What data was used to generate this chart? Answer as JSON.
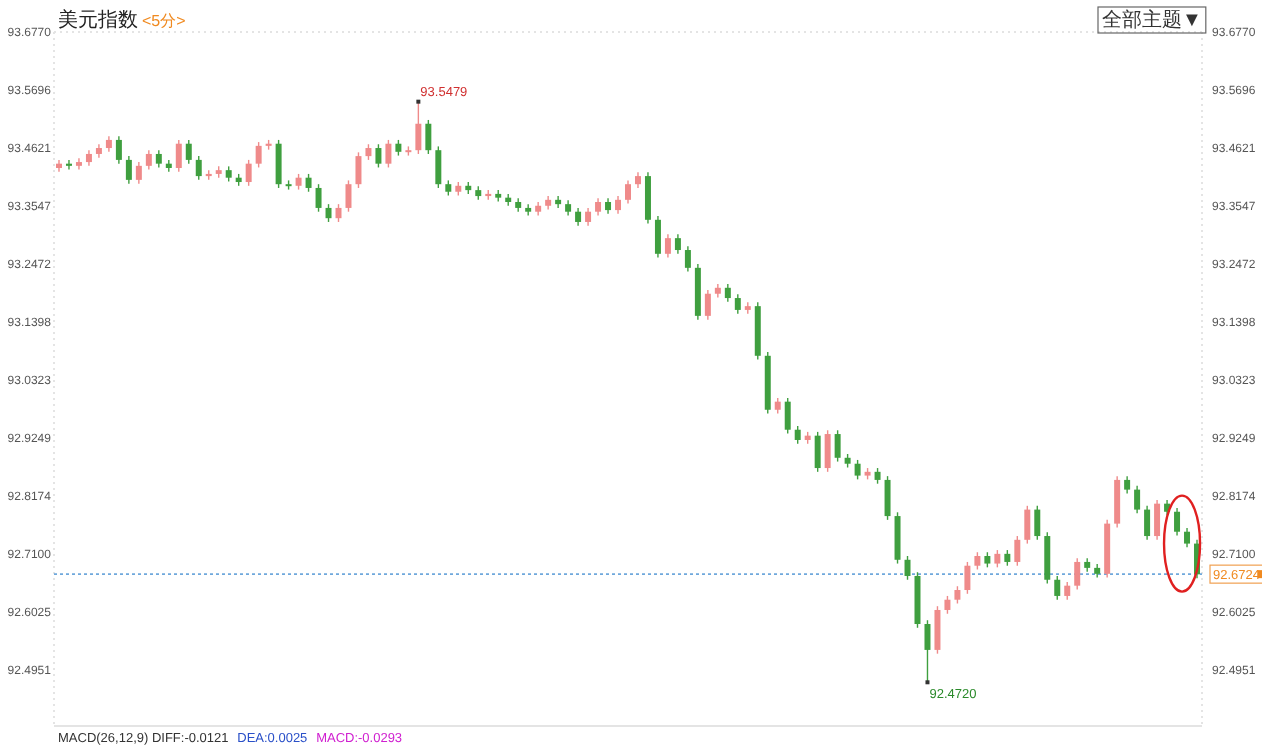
{
  "chart_data": {
    "type": "candlestick",
    "title": "美元指数",
    "subtitle": "<5分>",
    "categories": [
      null,
      null,
      null,
      null,
      null,
      null,
      null,
      null,
      null,
      null,
      null,
      null,
      null,
      null,
      null,
      null,
      null,
      null,
      null,
      null,
      null,
      null,
      null,
      null,
      null,
      null,
      null,
      null,
      null,
      null,
      null,
      null,
      null,
      null,
      null,
      null,
      null,
      null,
      null,
      null,
      null,
      null,
      null,
      null,
      null,
      null,
      null,
      null,
      null,
      null,
      null,
      null,
      null,
      null,
      null,
      null,
      null,
      null,
      null,
      null,
      null,
      null,
      null,
      null,
      null,
      null,
      null,
      null,
      null,
      null,
      null,
      null,
      null,
      null,
      null,
      null,
      null,
      null,
      null,
      null,
      null,
      null,
      null,
      null,
      null,
      null,
      null,
      null,
      null,
      null,
      null,
      null,
      null,
      null,
      null,
      null,
      null,
      null,
      null,
      null,
      null,
      null,
      null,
      null,
      null,
      null,
      null,
      null,
      null,
      null,
      null,
      null,
      null,
      null,
      null
    ],
    "ohlc": [
      [
        93.425,
        93.44,
        93.418,
        93.433
      ],
      [
        93.433,
        93.44,
        93.422,
        93.429
      ],
      [
        93.429,
        93.443,
        93.422,
        93.436
      ],
      [
        93.436,
        93.458,
        93.429,
        93.451
      ],
      [
        93.451,
        93.469,
        93.444,
        93.462
      ],
      [
        93.462,
        93.484,
        93.455,
        93.477
      ],
      [
        93.477,
        93.484,
        93.433,
        93.44
      ],
      [
        93.44,
        93.447,
        93.396,
        93.403
      ],
      [
        93.403,
        93.436,
        93.396,
        93.429
      ],
      [
        93.429,
        93.458,
        93.422,
        93.451
      ],
      [
        93.451,
        93.458,
        93.426,
        93.433
      ],
      [
        93.433,
        93.44,
        93.418,
        93.425
      ],
      [
        93.425,
        93.477,
        93.418,
        93.47
      ],
      [
        93.47,
        93.477,
        93.433,
        93.44
      ],
      [
        93.44,
        93.447,
        93.403,
        93.41
      ],
      [
        93.41,
        93.421,
        93.403,
        93.414
      ],
      [
        93.414,
        93.428,
        93.407,
        93.421
      ],
      [
        93.421,
        93.428,
        93.4,
        93.407
      ],
      [
        93.407,
        93.414,
        93.392,
        93.399
      ],
      [
        93.399,
        93.44,
        93.392,
        93.433
      ],
      [
        93.433,
        93.473,
        93.426,
        93.466
      ],
      [
        93.466,
        93.477,
        93.459,
        93.47
      ],
      [
        93.47,
        93.477,
        93.388,
        93.395
      ],
      [
        93.395,
        93.402,
        93.385,
        93.392
      ],
      [
        93.392,
        93.414,
        93.385,
        93.407
      ],
      [
        93.407,
        93.414,
        93.381,
        93.388
      ],
      [
        93.388,
        93.395,
        93.344,
        93.351
      ],
      [
        93.351,
        93.358,
        93.325,
        93.332
      ],
      [
        93.332,
        93.358,
        93.325,
        93.351
      ],
      [
        93.351,
        93.402,
        93.344,
        93.395
      ],
      [
        93.395,
        93.454,
        93.388,
        93.447
      ],
      [
        93.447,
        93.469,
        93.44,
        93.462
      ],
      [
        93.462,
        93.469,
        93.426,
        93.433
      ],
      [
        93.433,
        93.477,
        93.426,
        93.47
      ],
      [
        93.47,
        93.477,
        93.448,
        93.455
      ],
      [
        93.455,
        93.465,
        93.448,
        93.458
      ],
      [
        93.458,
        93.5479,
        93.451,
        93.507
      ],
      [
        93.507,
        93.514,
        93.451,
        93.458
      ],
      [
        93.458,
        93.465,
        93.388,
        93.395
      ],
      [
        93.395,
        93.402,
        93.374,
        93.381
      ],
      [
        93.381,
        93.399,
        93.374,
        93.392
      ],
      [
        93.392,
        93.399,
        93.377,
        93.384
      ],
      [
        93.384,
        93.391,
        93.366,
        93.373
      ],
      [
        93.373,
        93.384,
        93.366,
        93.377
      ],
      [
        93.377,
        93.384,
        93.363,
        93.37
      ],
      [
        93.37,
        93.377,
        93.355,
        93.362
      ],
      [
        93.362,
        93.369,
        93.344,
        93.351
      ],
      [
        93.351,
        93.358,
        93.337,
        93.344
      ],
      [
        93.344,
        93.362,
        93.337,
        93.355
      ],
      [
        93.355,
        93.373,
        93.348,
        93.366
      ],
      [
        93.366,
        93.373,
        93.351,
        93.358
      ],
      [
        93.358,
        93.365,
        93.337,
        93.344
      ],
      [
        93.344,
        93.351,
        93.318,
        93.325
      ],
      [
        93.325,
        93.351,
        93.318,
        93.344
      ],
      [
        93.344,
        93.369,
        93.337,
        93.362
      ],
      [
        93.362,
        93.369,
        93.34,
        93.347
      ],
      [
        93.347,
        93.373,
        93.34,
        93.366
      ],
      [
        93.366,
        93.402,
        93.359,
        93.395
      ],
      [
        93.395,
        93.417,
        93.388,
        93.41
      ],
      [
        93.41,
        93.417,
        93.322,
        93.329
      ],
      [
        93.329,
        93.336,
        93.259,
        93.266
      ],
      [
        93.266,
        93.302,
        93.259,
        93.295
      ],
      [
        93.295,
        93.302,
        93.266,
        93.273
      ],
      [
        93.273,
        93.28,
        93.233,
        93.24
      ],
      [
        93.24,
        93.247,
        93.144,
        93.151
      ],
      [
        93.151,
        93.199,
        93.144,
        93.192
      ],
      [
        93.192,
        93.21,
        93.185,
        93.203
      ],
      [
        93.203,
        93.21,
        93.177,
        93.184
      ],
      [
        93.184,
        93.191,
        93.155,
        93.162
      ],
      [
        93.162,
        93.176,
        93.155,
        93.169
      ],
      [
        93.169,
        93.176,
        93.07,
        93.077
      ],
      [
        93.077,
        93.084,
        92.97,
        92.977
      ],
      [
        92.977,
        92.999,
        92.97,
        92.992
      ],
      [
        92.992,
        92.999,
        92.933,
        92.94
      ],
      [
        92.94,
        92.947,
        92.914,
        92.921
      ],
      [
        92.921,
        92.936,
        92.914,
        92.929
      ],
      [
        92.929,
        92.936,
        92.862,
        92.869
      ],
      [
        92.869,
        92.939,
        92.862,
        92.932
      ],
      [
        92.932,
        92.939,
        92.881,
        92.888
      ],
      [
        92.888,
        92.895,
        92.87,
        92.877
      ],
      [
        92.877,
        92.884,
        92.848,
        92.855
      ],
      [
        92.855,
        92.869,
        92.848,
        92.862
      ],
      [
        92.862,
        92.869,
        92.84,
        92.847
      ],
      [
        92.847,
        92.854,
        92.773,
        92.78
      ],
      [
        92.78,
        92.787,
        92.692,
        92.699
      ],
      [
        92.699,
        92.706,
        92.662,
        92.669
      ],
      [
        92.669,
        92.676,
        92.573,
        92.58
      ],
      [
        92.58,
        92.587,
        92.472,
        92.532
      ],
      [
        92.532,
        92.613,
        92.525,
        92.606
      ],
      [
        92.606,
        92.632,
        92.599,
        92.625
      ],
      [
        92.625,
        92.65,
        92.618,
        92.643
      ],
      [
        92.643,
        92.695,
        92.636,
        92.688
      ],
      [
        92.688,
        92.713,
        92.681,
        92.706
      ],
      [
        92.706,
        92.713,
        92.685,
        92.692
      ],
      [
        92.692,
        92.717,
        92.685,
        92.71
      ],
      [
        92.71,
        92.717,
        92.688,
        92.695
      ],
      [
        92.695,
        92.743,
        92.688,
        92.736
      ],
      [
        92.736,
        92.799,
        92.729,
        92.792
      ],
      [
        92.792,
        92.799,
        92.736,
        92.743
      ],
      [
        92.743,
        92.75,
        92.655,
        92.662
      ],
      [
        92.662,
        92.669,
        92.625,
        92.632
      ],
      [
        92.632,
        92.658,
        92.625,
        92.651
      ],
      [
        92.651,
        92.702,
        92.644,
        92.695
      ],
      [
        92.695,
        92.702,
        92.677,
        92.684
      ],
      [
        92.684,
        92.691,
        92.666,
        92.673
      ],
      [
        92.673,
        92.773,
        92.666,
        92.766
      ],
      [
        92.766,
        92.854,
        92.759,
        92.847
      ],
      [
        92.847,
        92.854,
        92.822,
        92.829
      ],
      [
        92.829,
        92.836,
        92.785,
        92.792
      ],
      [
        92.792,
        92.799,
        92.736,
        92.743
      ],
      [
        92.743,
        92.81,
        92.736,
        92.803
      ],
      [
        92.803,
        92.81,
        92.781,
        92.788
      ],
      [
        92.788,
        92.795,
        92.744,
        92.751
      ],
      [
        92.751,
        92.758,
        92.722,
        92.729
      ],
      [
        92.729,
        92.736,
        92.665,
        92.672
      ]
    ],
    "colors": [
      "#ef8a8a",
      "#3f9f3f",
      "#ef8a8a",
      "#ef8a8a",
      "#ef8a8a",
      "#ef8a8a",
      "#3f9f3f",
      "#3f9f3f",
      "#ef8a8a",
      "#ef8a8a",
      "#3f9f3f",
      "#3f9f3f",
      "#ef8a8a",
      "#3f9f3f",
      "#3f9f3f",
      "#ef8a8a",
      "#ef8a8a",
      "#3f9f3f",
      "#3f9f3f",
      "#ef8a8a",
      "#ef8a8a",
      "#ef8a8a",
      "#3f9f3f",
      "#3f9f3f",
      "#ef8a8a",
      "#3f9f3f",
      "#3f9f3f",
      "#3f9f3f",
      "#ef8a8a",
      "#ef8a8a",
      "#ef8a8a",
      "#ef8a8a",
      "#3f9f3f",
      "#ef8a8a",
      "#3f9f3f",
      "#ef8a8a",
      "#ef8a8a",
      "#3f9f3f",
      "#3f9f3f",
      "#3f9f3f",
      "#ef8a8a",
      "#3f9f3f",
      "#3f9f3f",
      "#ef8a8a",
      "#3f9f3f",
      "#3f9f3f",
      "#3f9f3f",
      "#3f9f3f",
      "#ef8a8a",
      "#ef8a8a",
      "#3f9f3f",
      "#3f9f3f",
      "#3f9f3f",
      "#ef8a8a",
      "#ef8a8a",
      "#3f9f3f",
      "#ef8a8a",
      "#ef8a8a",
      "#ef8a8a",
      "#3f9f3f",
      "#3f9f3f",
      "#ef8a8a",
      "#3f9f3f",
      "#3f9f3f",
      "#3f9f3f",
      "#ef8a8a",
      "#ef8a8a",
      "#3f9f3f",
      "#3f9f3f",
      "#ef8a8a",
      "#3f9f3f",
      "#3f9f3f",
      "#ef8a8a",
      "#3f9f3f",
      "#3f9f3f",
      "#ef8a8a",
      "#3f9f3f",
      "#ef8a8a",
      "#3f9f3f",
      "#3f9f3f",
      "#3f9f3f",
      "#ef8a8a",
      "#3f9f3f",
      "#3f9f3f",
      "#3f9f3f",
      "#3f9f3f",
      "#3f9f3f",
      "#3f9f3f",
      "#ef8a8a",
      "#ef8a8a",
      "#ef8a8a",
      "#ef8a8a",
      "#ef8a8a",
      "#3f9f3f",
      "#ef8a8a",
      "#3f9f3f",
      "#ef8a8a",
      "#ef8a8a",
      "#3f9f3f",
      "#3f9f3f",
      "#3f9f3f",
      "#ef8a8a",
      "#ef8a8a",
      "#3f9f3f",
      "#3f9f3f",
      "#ef8a8a",
      "#ef8a8a",
      "#3f9f3f",
      "#3f9f3f",
      "#3f9f3f",
      "#ef8a8a",
      "#3f9f3f",
      "#3f9f3f",
      "#3f9f3f",
      "#3f9f3f"
    ],
    "ylim": [
      92.391,
      93.677
    ],
    "yticks": [
      {
        "value": 93.677,
        "label": "93.6770"
      },
      93.5696,
      93.4621,
      93.3547,
      93.2472,
      93.1398,
      93.0323,
      92.9249,
      92.8174,
      {
        "value": 92.71,
        "label": "92.7100"
      },
      92.6025,
      92.4951
    ],
    "y2lim": [
      92.391,
      93.677
    ],
    "y2ticks": [
      {
        "value": 93.677,
        "label": "93.6770"
      },
      93.5696,
      93.4621,
      93.3547,
      93.2472,
      93.1398,
      93.0323,
      92.9249,
      92.8174,
      {
        "value": 92.71,
        "label": "92.7100"
      },
      92.6025,
      92.4951
    ],
    "ref_lines": [
      {
        "axis": "y",
        "value": 92.6724,
        "label": "92.6724",
        "color": "#6fa8dc",
        "line_style": "dotted"
      }
    ],
    "annotations": [
      "93.5479",
      "92.4720",
      "全部主题▼",
      "MACD(26,12,9) DIFF:-0.0121",
      "DEA:0.0025",
      "MACD:-0.0293"
    ]
  }
}
